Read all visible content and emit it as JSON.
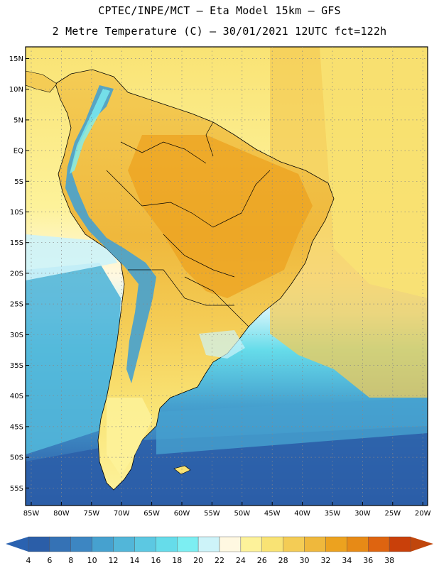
{
  "header": {
    "title_line1": "CPTEC/INPE/MCT –  Eta Model 15km – GFS",
    "title_line2": "2 Metre Temperature (C) – 30/01/2021 12UTC fct=122h"
  },
  "axes": {
    "lat_labels": [
      "15N",
      "10N",
      "5N",
      "EQ",
      "5S",
      "10S",
      "15S",
      "20S",
      "25S",
      "30S",
      "35S",
      "40S",
      "45S",
      "50S",
      "55S"
    ],
    "lon_labels": [
      "85W",
      "80W",
      "75W",
      "70W",
      "65W",
      "60W",
      "55W",
      "50W",
      "45W",
      "40W",
      "35W",
      "30W",
      "25W",
      "20W"
    ]
  },
  "colorbar": {
    "labels": [
      "4",
      "6",
      "8",
      "10",
      "12",
      "14",
      "16",
      "18",
      "20",
      "22",
      "24",
      "26",
      "28",
      "30",
      "32",
      "34",
      "36",
      "38"
    ],
    "colors": [
      "#2b5ea8",
      "#3572b5",
      "#3d86c2",
      "#46a1cf",
      "#52b6d9",
      "#5cc8e2",
      "#66dcea",
      "#7ceef2",
      "#cdf3f9",
      "#fff8e1",
      "#fdf29a",
      "#f9e374",
      "#f4cc55",
      "#efb83c",
      "#eca21f",
      "#e78a16",
      "#de6410",
      "#c9400a"
    ],
    "left_arrow_color": "#2a62b0",
    "right_arrow_color": "#c0460c"
  },
  "map_colors": {
    "ocean_deep": "#2b5ea8",
    "ocean_mid": "#46a1cf",
    "ocean_light": "#5cc8e2",
    "ocean_cyan": "#7ceef2",
    "ocean_pale": "#cdf3f9",
    "sea_warm": "#f9e374",
    "sea_warm2": "#f4cc55",
    "land_warm": "#efb83c",
    "land_hot": "#eca21f",
    "andes_cold": "#46a1cf",
    "andes_cool": "#7ceef2",
    "patagonia": "#f9e374",
    "grid": "#888888",
    "border": "#000000"
  }
}
